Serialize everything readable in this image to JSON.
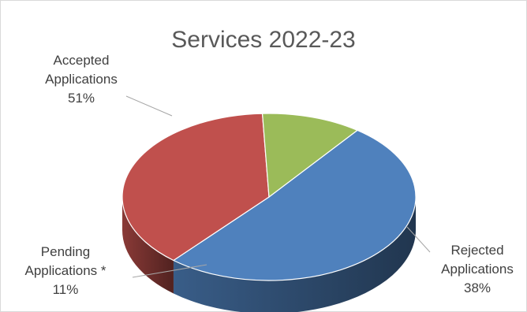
{
  "chart_data": {
    "type": "pie",
    "title": "Services 2022-23",
    "categories": [
      "Accepted Applications",
      "Rejected Applications",
      "Pending Applications *"
    ],
    "values": [
      51,
      38,
      11
    ],
    "value_labels": [
      "51%",
      "38%",
      "11%"
    ],
    "colors": [
      "#4f81bd",
      "#c0504d",
      "#9bbb59"
    ],
    "label_lines": [
      [
        "Accepted",
        "Applications"
      ],
      [
        "Rejected",
        "Applications"
      ],
      [
        "Pending",
        "Applications *"
      ]
    ],
    "style": "3d-pie",
    "legend": "none"
  }
}
